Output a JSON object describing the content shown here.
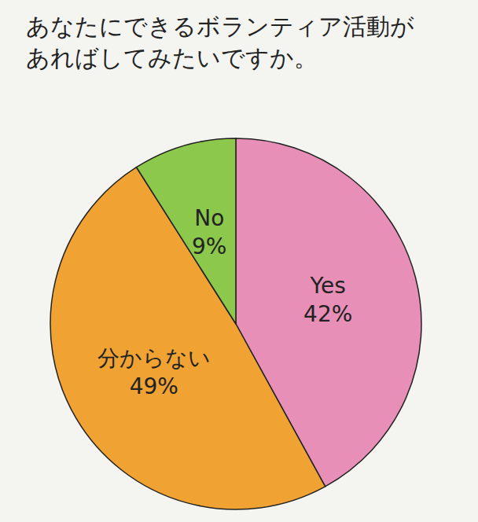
{
  "chart_data": {
    "type": "pie",
    "title": "あなたにできるボランティア活動があればしてみたいですか。",
    "categories": [
      "Yes",
      "分からない",
      "No"
    ],
    "values": [
      42,
      49,
      9
    ],
    "value_labels": [
      "42%",
      "49%",
      "9%"
    ],
    "colors": [
      "#e88fb8",
      "#f0a232",
      "#8cc84b"
    ],
    "data_labels": true
  }
}
